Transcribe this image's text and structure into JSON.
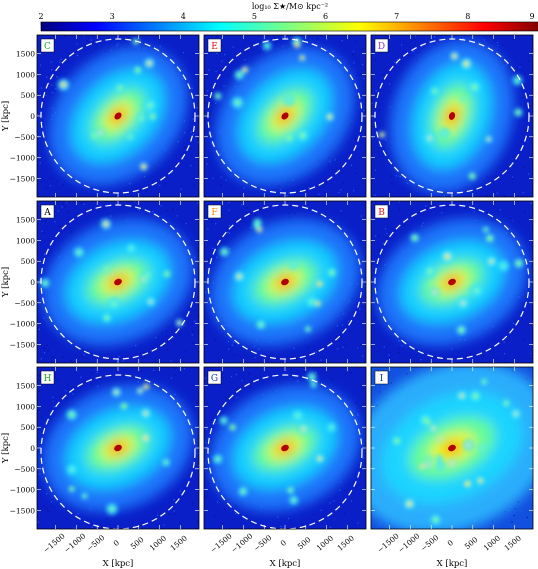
{
  "figure": {
    "colorbar": {
      "label": "log₁₀ Σ★/M⊙ kpc⁻²",
      "ticks": [
        "2",
        "3",
        "4",
        "5",
        "6",
        "7",
        "8",
        "9"
      ],
      "range": [
        2,
        9
      ],
      "colormap": "jet"
    },
    "xlabel": "X [kpc]",
    "ylabel": "Y [kpc]",
    "x_ticks": [
      "−1500",
      "−1000",
      "−500",
      "0",
      "500",
      "1000",
      "1500"
    ],
    "y_ticks": [
      "1500",
      "1000",
      "500",
      "0",
      "−500",
      "−1000",
      "−1500"
    ],
    "panel_letter_colors": {
      "green": "#22aa22",
      "orange": "#ff8800",
      "purple": "#8833cc",
      "black": "#000000",
      "red": "#dd1111",
      "blue": "#1133cc"
    }
  },
  "chart_data": [
    {
      "type": "heatmap",
      "panel": "C",
      "label_color": "green",
      "dashed_circle": true,
      "xlim": [
        -1950,
        1950
      ],
      "ylim": [
        -1950,
        1950
      ],
      "colorbar_range": [
        2,
        9
      ]
    },
    {
      "type": "heatmap",
      "panel": "E",
      "label_color": "red",
      "dashed_circle": true,
      "xlim": [
        -1950,
        1950
      ],
      "ylim": [
        -1950,
        1950
      ],
      "colorbar_range": [
        2,
        9
      ]
    },
    {
      "type": "heatmap",
      "panel": "D",
      "label_color": "purple",
      "dashed_circle": true,
      "xlim": [
        -1950,
        1950
      ],
      "ylim": [
        -1950,
        1950
      ],
      "colorbar_range": [
        2,
        9
      ]
    },
    {
      "type": "heatmap",
      "panel": "A",
      "label_color": "black",
      "dashed_circle": true,
      "xlim": [
        -1950,
        1950
      ],
      "ylim": [
        -1950,
        1950
      ],
      "colorbar_range": [
        2,
        9
      ]
    },
    {
      "type": "heatmap",
      "panel": "F",
      "label_color": "orange",
      "dashed_circle": true,
      "xlim": [
        -1950,
        1950
      ],
      "ylim": [
        -1950,
        1950
      ],
      "colorbar_range": [
        2,
        9
      ]
    },
    {
      "type": "heatmap",
      "panel": "B",
      "label_color": "red",
      "dashed_circle": true,
      "xlim": [
        -1950,
        1950
      ],
      "ylim": [
        -1950,
        1950
      ],
      "colorbar_range": [
        2,
        9
      ]
    },
    {
      "type": "heatmap",
      "panel": "H",
      "label_color": "green",
      "dashed_circle": true,
      "xlim": [
        -1950,
        1950
      ],
      "ylim": [
        -1950,
        1950
      ],
      "colorbar_range": [
        2,
        9
      ]
    },
    {
      "type": "heatmap",
      "panel": "G",
      "label_color": "blue",
      "dashed_circle": true,
      "xlim": [
        -1950,
        1950
      ],
      "ylim": [
        -1950,
        1950
      ],
      "colorbar_range": [
        2,
        9
      ]
    },
    {
      "type": "heatmap",
      "panel": "I",
      "label_color": "blue",
      "dashed_circle": false,
      "xlim": [
        -1950,
        1950
      ],
      "ylim": [
        -1950,
        1950
      ],
      "colorbar_range": [
        2,
        9
      ]
    }
  ]
}
